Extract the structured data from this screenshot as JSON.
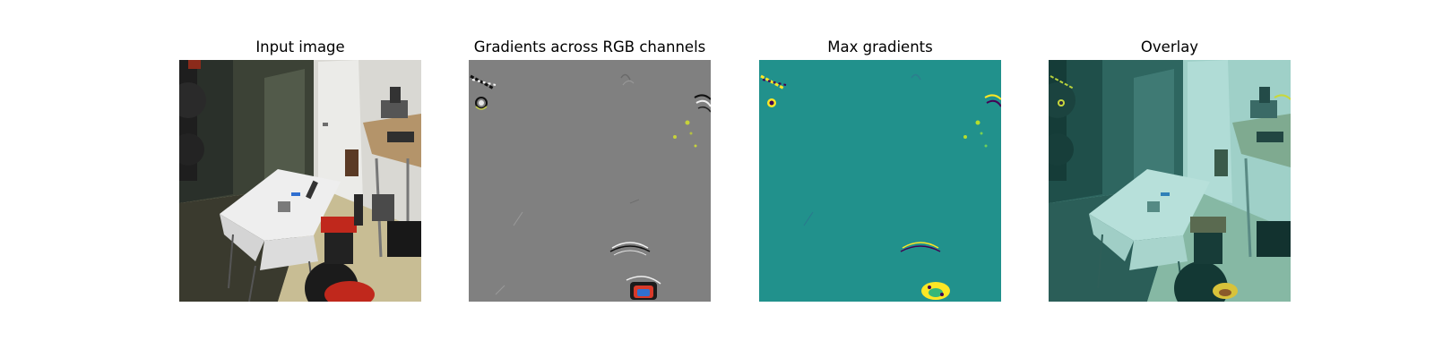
{
  "figure": {
    "panels": [
      {
        "title": "Input image",
        "image": "robot-camera-photo"
      },
      {
        "title": "Gradients across RGB channels",
        "image": "rgb-gradient-map"
      },
      {
        "title": "Max gradients",
        "image": "max-gradient-heatmap"
      },
      {
        "title": "Overlay",
        "image": "gradient-overlay-photo"
      }
    ],
    "colors": {
      "background": "#ffffff",
      "gradient_gray": "#808080",
      "max_gradient_teal": "#21918c",
      "highlight_yellow": "#fde725",
      "gripper_red": "#c0281c"
    }
  }
}
